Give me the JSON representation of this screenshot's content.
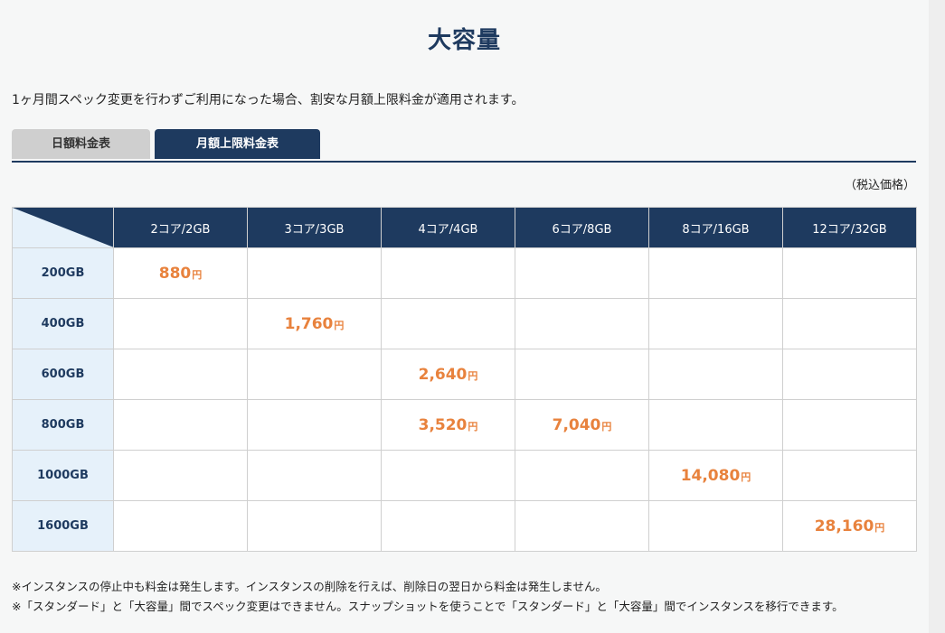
{
  "title": "大容量",
  "intro": "1ヶ月間スペック変更を行わずご利用になった場合、割安な月額上限料金が適用されます。",
  "tabs": {
    "daily": "日額料金表",
    "monthly": "月額上限料金表"
  },
  "tax_note": "（税込価格）",
  "table": {
    "columns": [
      "2コア/2GB",
      "3コア/3GB",
      "4コア/4GB",
      "6コア/8GB",
      "8コア/16GB",
      "12コア/32GB"
    ],
    "yen": "円",
    "rows": [
      {
        "label": "200GB",
        "cells": [
          "880",
          "",
          "",
          "",
          "",
          ""
        ]
      },
      {
        "label": "400GB",
        "cells": [
          "",
          "1,760",
          "",
          "",
          "",
          ""
        ]
      },
      {
        "label": "600GB",
        "cells": [
          "",
          "",
          "2,640",
          "",
          "",
          ""
        ]
      },
      {
        "label": "800GB",
        "cells": [
          "",
          "",
          "3,520",
          "7,040",
          "",
          ""
        ]
      },
      {
        "label": "1000GB",
        "cells": [
          "",
          "",
          "",
          "",
          "14,080",
          ""
        ]
      },
      {
        "label": "1600GB",
        "cells": [
          "",
          "",
          "",
          "",
          "",
          "28,160"
        ]
      }
    ]
  },
  "footnotes": [
    "※インスタンスの停止中も料金は発生します。インスタンスの削除を行えば、削除日の翌日から料金は発生しません。",
    "※「スタンダード」と「大容量」間でスペック変更はできません。スナップショットを使うことで「スタンダード」と「大容量」間でインスタンスを移行できます。"
  ],
  "colors": {
    "navy": "#1e3a5f",
    "accent": "#e8823d",
    "row_header_bg": "#e6f1fa"
  }
}
